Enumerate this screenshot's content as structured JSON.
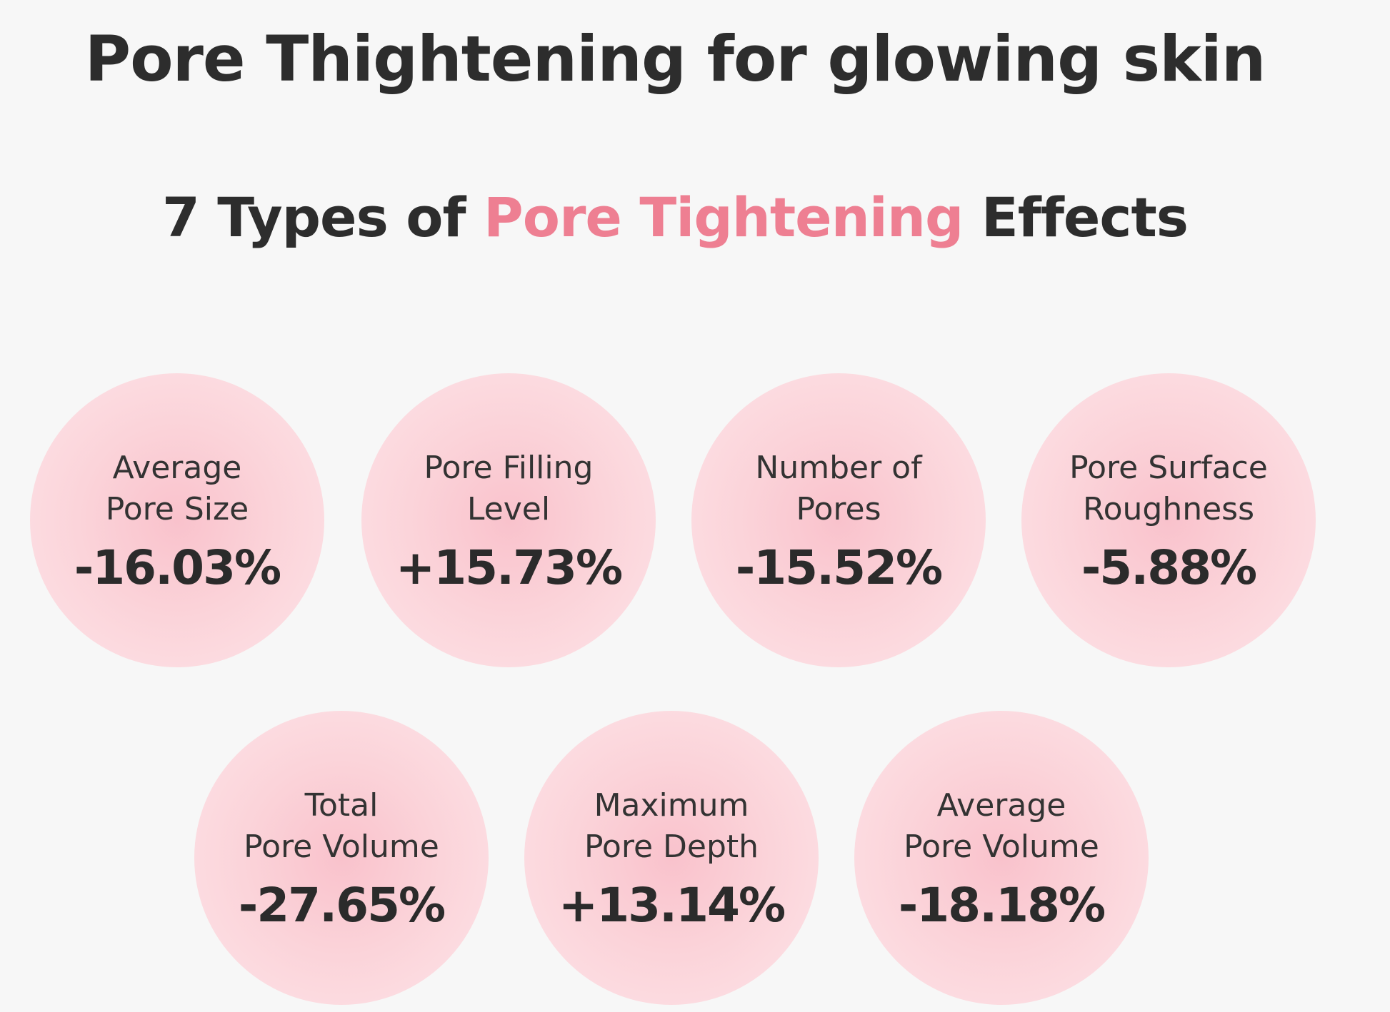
{
  "title": "Pore Thightening for glowing skin",
  "heading": {
    "prefix": "7 Types of ",
    "highlight": "Pore Tightening",
    "suffix": " Effects"
  },
  "colors": {
    "accent": "#ee7f92",
    "text": "#2d2d2d",
    "circle": "#fbd3d9"
  },
  "stats": [
    {
      "line1": "Average",
      "line2": "Pore Size",
      "value": "-16.03%"
    },
    {
      "line1": "Pore Filling",
      "line2": "Level",
      "value": "+15.73%"
    },
    {
      "line1": "Number of",
      "line2": "Pores",
      "value": "-15.52%"
    },
    {
      "line1": "Pore Surface",
      "line2": "Roughness",
      "value": "-5.88%"
    },
    {
      "line1": "Total",
      "line2": "Pore Volume",
      "value": "-27.65%"
    },
    {
      "line1": "Maximum",
      "line2": "Pore Depth",
      "value": "+13.14%"
    },
    {
      "line1": "Average",
      "line2": "Pore Volume",
      "value": "-18.18%"
    }
  ]
}
